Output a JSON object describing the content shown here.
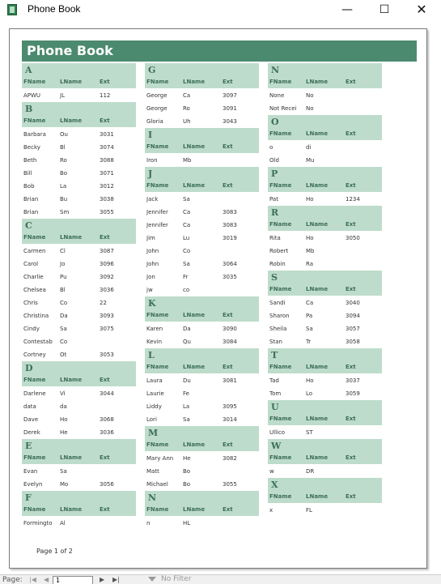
{
  "window": {
    "title": "Phone Book",
    "minimize": "—",
    "maximize": "☐",
    "close": "✕"
  },
  "report": {
    "title": "Phone Book",
    "headers": {
      "fname": "FName",
      "lname": "LName",
      "ext": "Ext"
    },
    "columns": [
      [
        {
          "letter": "A",
          "rows": [
            [
              "APWU",
              "JL",
              "112"
            ]
          ]
        },
        {
          "letter": "B",
          "rows": [
            [
              "Barbara",
              "Ou",
              "3031"
            ],
            [
              "Becky",
              "Bl",
              "3074"
            ],
            [
              "Beth",
              "Ro",
              "3088"
            ],
            [
              "Bill",
              "Bo",
              "3071"
            ],
            [
              "Bob",
              "La",
              "3012"
            ],
            [
              "Brian",
              "Bu",
              "3038"
            ],
            [
              "Brian",
              "Sm",
              "3055"
            ]
          ]
        },
        {
          "letter": "C",
          "rows": [
            [
              "Carmen",
              "Cl",
              "3087"
            ],
            [
              "Carol",
              "Jo",
              "3096"
            ],
            [
              "Charlie",
              "Pu",
              "3092"
            ],
            [
              "Chelsea",
              "Bl",
              "3036"
            ],
            [
              "Chris",
              "Co",
              "22"
            ],
            [
              "Christina",
              "Da",
              "3093"
            ],
            [
              "Cindy",
              "Sa",
              "3075"
            ],
            [
              "Contestab",
              "Co",
              ""
            ],
            [
              "Cortney",
              "Ot",
              "3053"
            ]
          ]
        },
        {
          "letter": "D",
          "rows": [
            [
              "Darlene",
              "Vi",
              "3044"
            ],
            [
              "data",
              "da",
              ""
            ],
            [
              "Dave",
              "Ho",
              "3068"
            ],
            [
              "Derek",
              "He",
              "3036"
            ]
          ]
        },
        {
          "letter": "E",
          "rows": [
            [
              "Evan",
              "Sa",
              ""
            ],
            [
              "Evelyn",
              "Mo",
              "3056"
            ]
          ]
        },
        {
          "letter": "F",
          "rows": [
            [
              "Formingto",
              "Al",
              ""
            ]
          ]
        }
      ],
      [
        {
          "letter": "G",
          "rows": [
            [
              "George",
              "Ca",
              "3097"
            ],
            [
              "George",
              "Ro",
              "3091"
            ],
            [
              "Gloria",
              "Uh",
              "3043"
            ]
          ]
        },
        {
          "letter": "I",
          "rows": [
            [
              "Iron",
              "Mb",
              ""
            ]
          ]
        },
        {
          "letter": "J",
          "rows": [
            [
              "Jack",
              "Sa",
              ""
            ],
            [
              "Jennifer",
              "Ca",
              "3083"
            ],
            [
              "Jennifer",
              "Ca",
              "3083"
            ],
            [
              "Jim",
              "Lu",
              "3019"
            ],
            [
              "John",
              "Co",
              ""
            ],
            [
              "John",
              "Sa",
              "3064"
            ],
            [
              "Jon",
              "Fr",
              "3035"
            ],
            [
              "jw",
              "co",
              ""
            ]
          ]
        },
        {
          "letter": "K",
          "rows": [
            [
              "Karen",
              "Da",
              "3090"
            ],
            [
              "Kevin",
              "Qu",
              "3084"
            ]
          ]
        },
        {
          "letter": "L",
          "rows": [
            [
              "Laura",
              "Du",
              "3081"
            ],
            [
              "Laurie",
              "Fe",
              ""
            ],
            [
              "Liddy",
              "La",
              "3095"
            ],
            [
              "Lori",
              "Sa",
              "3014"
            ]
          ]
        },
        {
          "letter": "M",
          "rows": [
            [
              "Mary Ann",
              "He",
              "3082"
            ],
            [
              "Matt",
              "Bo",
              ""
            ],
            [
              "Michael",
              "Bo",
              "3055"
            ]
          ]
        },
        {
          "letter": "N",
          "rows": [
            [
              "n",
              "HL",
              ""
            ]
          ]
        }
      ],
      [
        {
          "letter": "N",
          "rows": [
            [
              "None",
              "No",
              ""
            ],
            [
              "Not Recei",
              "No",
              ""
            ]
          ]
        },
        {
          "letter": "O",
          "rows": [
            [
              "o",
              "di",
              ""
            ],
            [
              "Old",
              "Mu",
              ""
            ]
          ]
        },
        {
          "letter": "P",
          "rows": [
            [
              "Pat",
              "Ho",
              "1234"
            ]
          ]
        },
        {
          "letter": "R",
          "rows": [
            [
              "Rita",
              "Ho",
              "3050"
            ],
            [
              "Robert",
              "Mb",
              ""
            ],
            [
              "Robin",
              "Ra",
              ""
            ]
          ]
        },
        {
          "letter": "S",
          "rows": [
            [
              "Sandi",
              "Ca",
              "3040"
            ],
            [
              "Sharon",
              "Pa",
              "3094"
            ],
            [
              "Sheila",
              "Sa",
              "3057"
            ],
            [
              "Stan",
              "Tr",
              "3058"
            ]
          ]
        },
        {
          "letter": "T",
          "rows": [
            [
              "Tad",
              "Ho",
              "3037"
            ],
            [
              "Tom",
              "Lo",
              "3059"
            ]
          ]
        },
        {
          "letter": "U",
          "rows": [
            [
              "Ullico",
              "ST",
              ""
            ]
          ]
        },
        {
          "letter": "W",
          "rows": [
            [
              "w",
              "DR",
              ""
            ]
          ]
        },
        {
          "letter": "X",
          "rows": [
            [
              "x",
              "FL",
              ""
            ]
          ]
        }
      ]
    ],
    "page_label": "Page 1 of 2"
  },
  "navbar": {
    "label": "Page:",
    "first": "|◀",
    "prev": "◀",
    "page_value": "1",
    "next": "▶",
    "last": "▶|",
    "filter_label": "No Filter"
  }
}
